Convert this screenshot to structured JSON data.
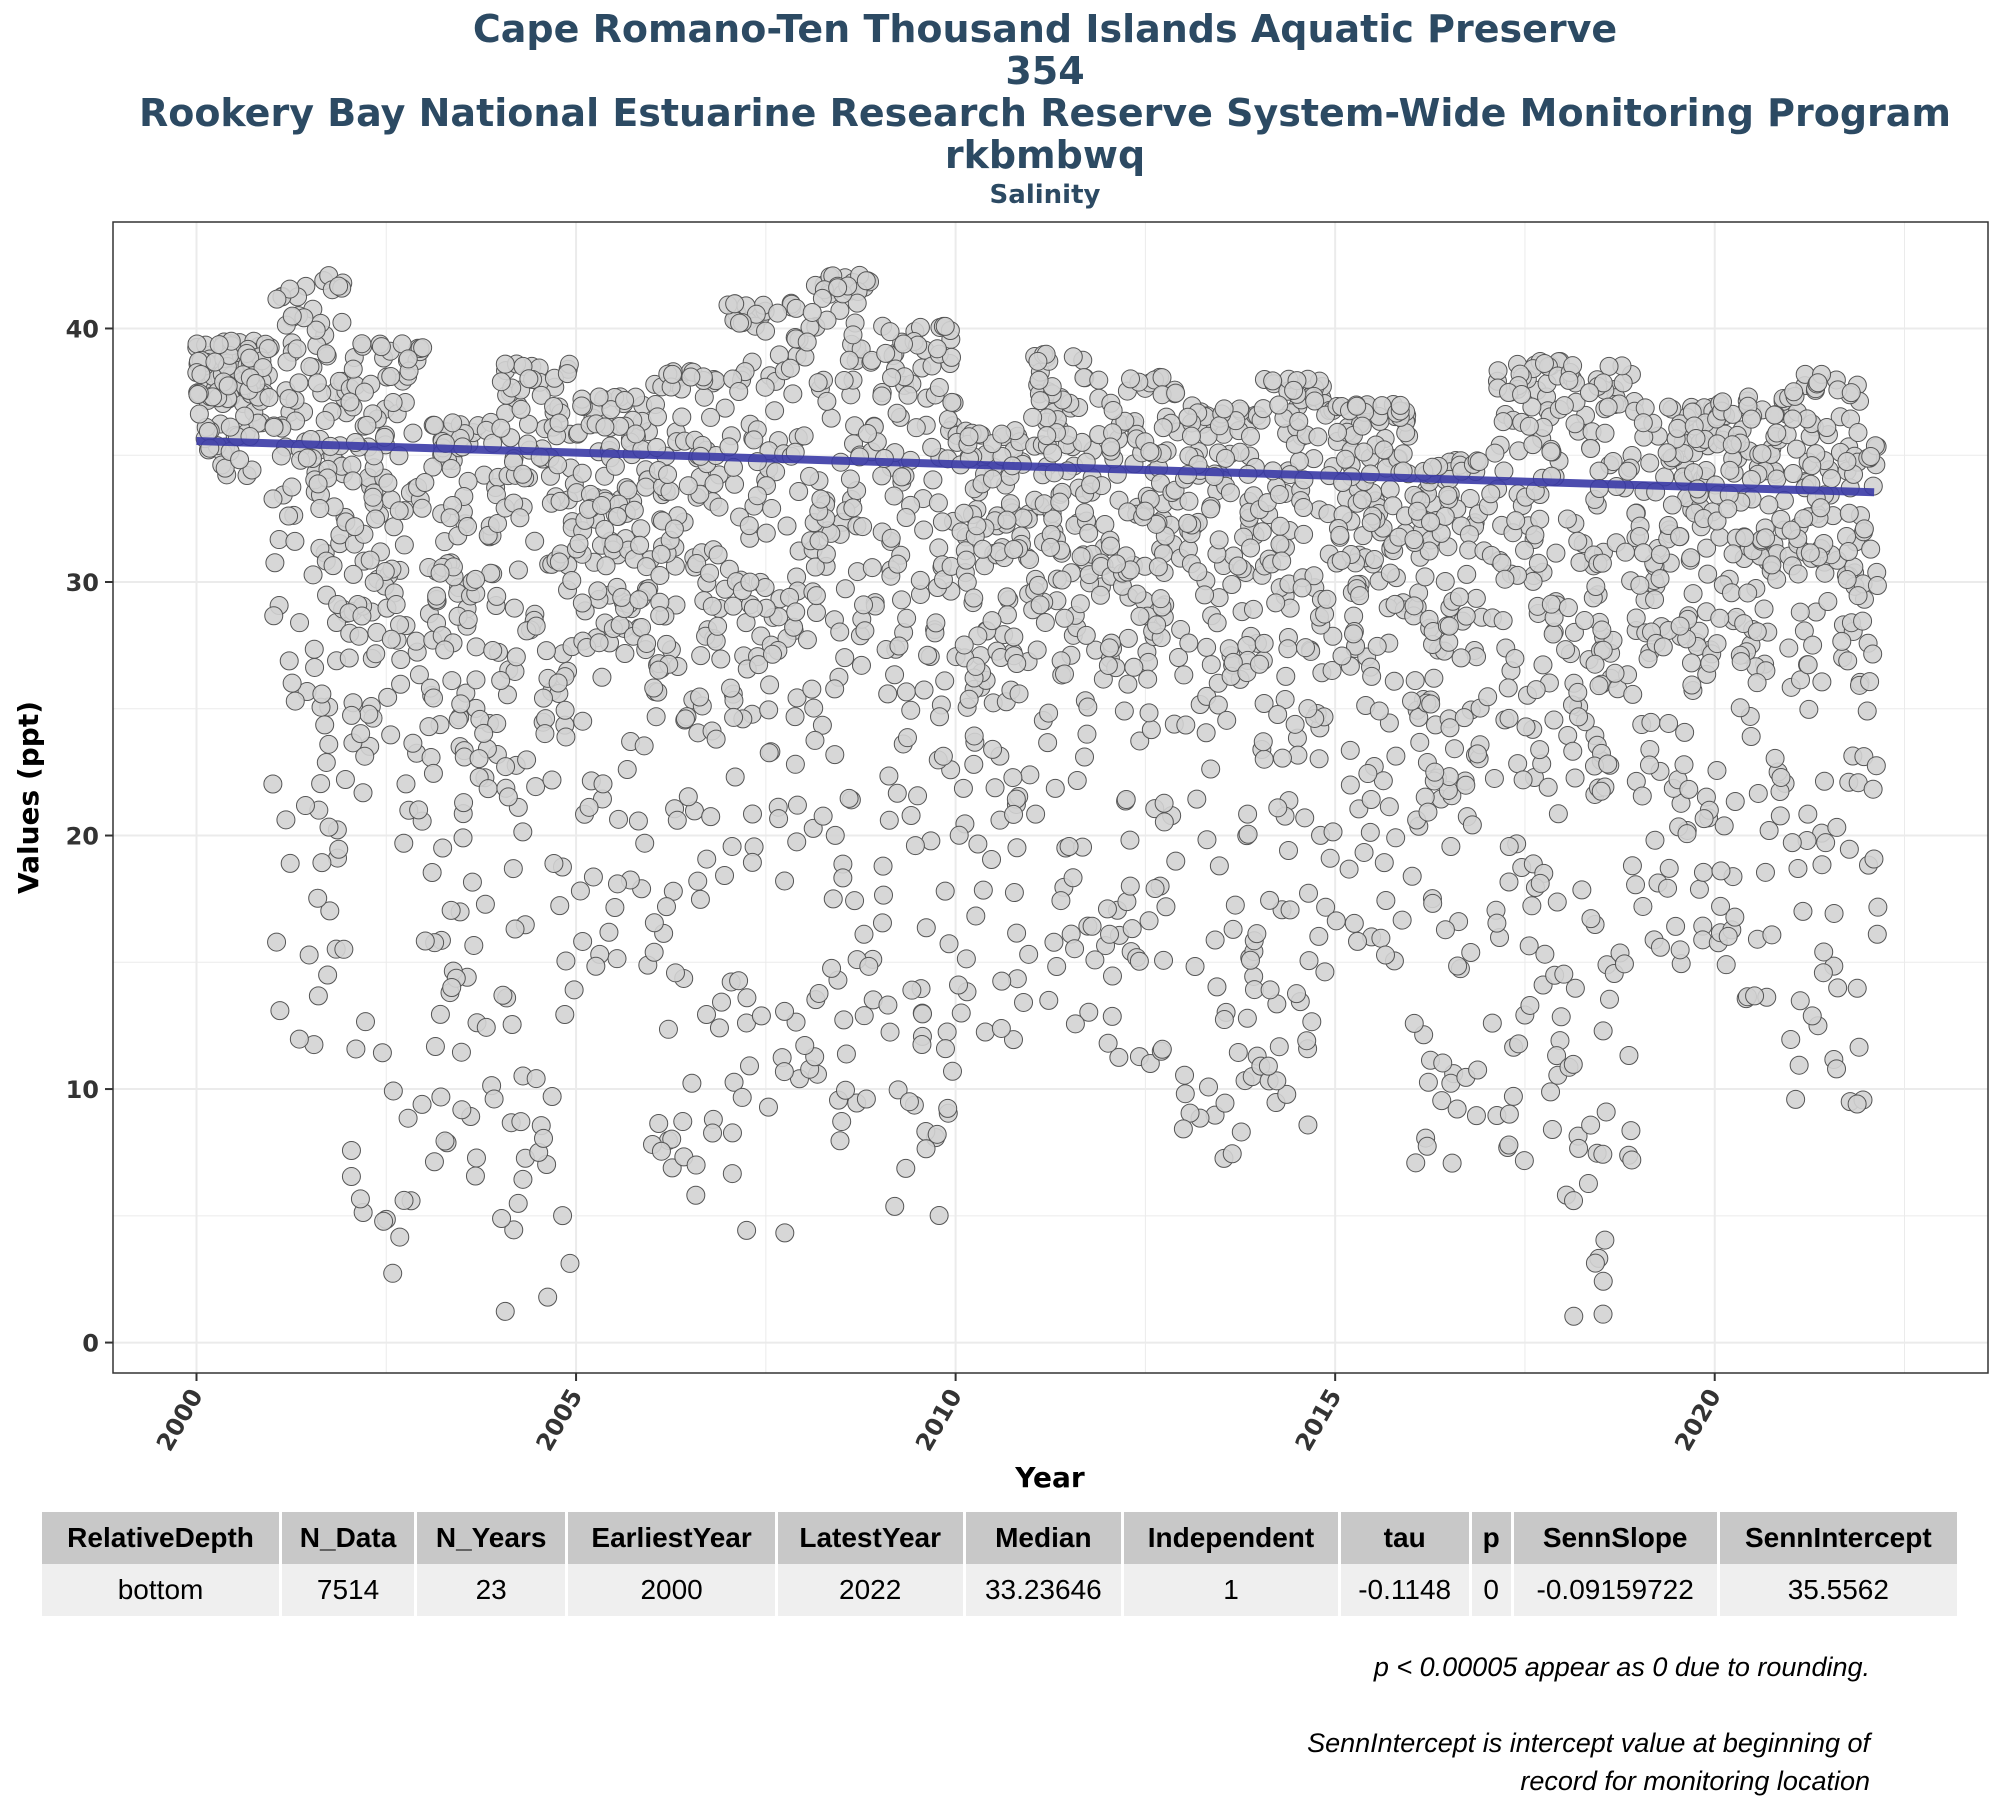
{
  "titles": {
    "line1": "Cape Romano-Ten Thousand Islands Aquatic Preserve",
    "line2": "354",
    "line3": "Rookery Bay National Estuarine Research Reserve System-Wide Monitoring Program",
    "line4": "rkbmbwq",
    "subtitle": "Salinity"
  },
  "chart_data": {
    "type": "scatter",
    "xlabel": "Year",
    "ylabel": "Values (ppt)",
    "xlim": [
      1998.9,
      2023.6
    ],
    "ylim": [
      -1.2,
      44.2
    ],
    "xticks": [
      2000,
      2005,
      2010,
      2015,
      2020
    ],
    "yticks": [
      0,
      10,
      20,
      30,
      40
    ],
    "grid": true,
    "point_color": "#d3d3d3",
    "point_edge_color": "#555555",
    "trend_color": "#3a3aa6",
    "trend": {
      "x": [
        2000.0,
        2022.1
      ],
      "y": [
        35.56,
        33.54
      ]
    },
    "years": [
      2000,
      2001,
      2002,
      2003,
      2004,
      2005,
      2006,
      2007,
      2008,
      2009,
      2010,
      2011,
      2012,
      2013,
      2014,
      2015,
      2016,
      2017,
      2018,
      2019,
      2020,
      2021,
      2022
    ],
    "yearly_max": [
      39.5,
      42.1,
      39.4,
      36.3,
      38.6,
      37.3,
      38.3,
      41.0,
      42.1,
      40.1,
      36.0,
      39.0,
      38.1,
      37.0,
      38.0,
      37.0,
      34.8,
      38.7,
      38.6,
      36.9,
      37.3,
      38.2,
      35.4
    ],
    "yearly_min": [
      34.2,
      11.6,
      1.9,
      6.5,
      0.8,
      14.6,
      5.5,
      4.2,
      7.9,
      5.0,
      11.9,
      12.5,
      10.9,
      7.0,
      8.1,
      14.8,
      6.9,
      6.3,
      0.8,
      14.9,
      13.3,
      9.1,
      14.1
    ]
  },
  "table": {
    "headers": [
      "RelativeDepth",
      "N_Data",
      "N_Years",
      "EarliestYear",
      "LatestYear",
      "Median",
      "Independent",
      "tau",
      "p",
      "SennSlope",
      "SennIntercept"
    ],
    "rows": [
      [
        "bottom",
        "7514",
        "23",
        "2000",
        "2022",
        "33.23646",
        "1",
        "-0.1148",
        "0",
        "-0.09159722",
        "35.5562"
      ]
    ]
  },
  "notes": {
    "note1": "p < 0.00005 appear as 0 due to rounding.",
    "note2a": "SennIntercept is intercept value at beginning of",
    "note2b": "record for monitoring location"
  }
}
